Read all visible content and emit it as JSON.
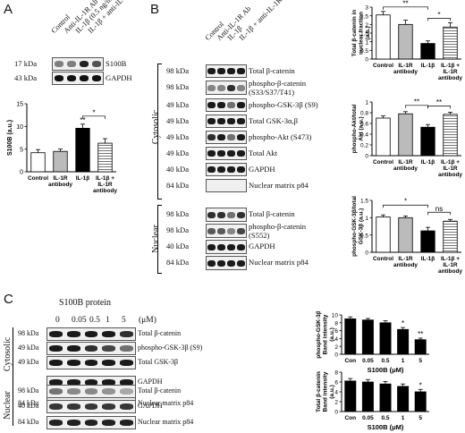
{
  "panels": {
    "A": {
      "letter": "A",
      "lanes": [
        "Control",
        "Anti-IL-1R Ab",
        "IL-1β (0.5 ng/ml)",
        "IL-1β + anti-IL-1R"
      ],
      "blots": [
        {
          "kda": "17 kDa",
          "name": "S100B"
        },
        {
          "kda": "43 kDa",
          "name": "GAPDH"
        }
      ]
    },
    "B": {
      "letter": "B",
      "lanes": [
        "Control",
        "Anti-IL-1R Ab",
        "IL-1β",
        "IL-1β + anti-IL-1R"
      ],
      "sections": {
        "cytosolic": "Cytosolic",
        "nuclear": "Nuclear"
      },
      "cyto_blots": [
        {
          "kda": "98 kDa",
          "name": "Total β-catenin"
        },
        {
          "kda": "98 kDa",
          "name": "phospho-β-catenin",
          "name2": "(S33/S37/T41)"
        },
        {
          "kda": "49 kDa",
          "name": "phospho-GSK-3β (S9)"
        },
        {
          "kda": "49 kDa",
          "name": "Total GSK-3α,β"
        },
        {
          "kda": "49 kDa",
          "name": "phospho-Akt (S473)"
        },
        {
          "kda": "49 kDa",
          "name": "Total Akt"
        },
        {
          "kda": "40 kDa",
          "name": "GAPDH"
        },
        {
          "kda": "84 kDa",
          "name": "Nuclear matrix p84"
        }
      ],
      "nuc_blots": [
        {
          "kda": "98 kDa",
          "name": "Total β-catenin"
        },
        {
          "kda": "98 kDa",
          "name": "phospho-β-catenin",
          "name2": "(S552)"
        },
        {
          "kda": "40 kDa",
          "name": "GAPDH"
        },
        {
          "kda": "84 kDa",
          "name": "Nuclear matrix p84"
        }
      ]
    },
    "C": {
      "letter": "C",
      "protein_label": "S100B protein",
      "doses": [
        "0",
        "0.05",
        "0.5",
        "1",
        "5"
      ],
      "unit": "(μM)",
      "sections": {
        "cytosolic": "Cytosolic",
        "nuclear": "Nuclear"
      },
      "cyto_blots": [
        {
          "kda": "98 kDa",
          "name": "Total β-catenin"
        },
        {
          "kda": "49 kDa",
          "name": "phospho-GSK-3β (S9)"
        },
        {
          "kda": "49 kDa",
          "name": "Total GSK-3β"
        },
        {
          "kda": "",
          "name": "GAPDH"
        },
        {
          "kda": "84 kDa",
          "name": "Nuclear matrix p84"
        }
      ],
      "nuc_blots": [
        {
          "kda": "98 kDa",
          "name": "Total β-catenin"
        },
        {
          "kda": "40 kDa",
          "name": "GAPDH"
        },
        {
          "kda": "84 kDa",
          "name": "Nuclear matrix p84"
        }
      ]
    }
  },
  "chart_data": [
    {
      "id": "A-S100B",
      "type": "bar",
      "categories": [
        "Control",
        "IL-1R antibody",
        "IL-1β",
        "IL-1β + IL-1R antibody"
      ],
      "values": [
        4.2,
        4.5,
        9.6,
        6.3
      ],
      "errors": [
        0.7,
        0.5,
        0.9,
        1.0
      ],
      "ylabel": "S100B (a.u.)",
      "ylim": [
        0,
        15
      ],
      "yticks": [
        0,
        5,
        10,
        15
      ],
      "significance": [
        {
          "from": 2,
          "to": 3,
          "label": "*"
        }
      ],
      "marks": [
        {
          "index": 2,
          "label": "**"
        }
      ],
      "fills": [
        "#ffffff",
        "#bbbbbb",
        "#000000",
        "#ffffff"
      ],
      "hatched": [
        false,
        false,
        false,
        true
      ]
    },
    {
      "id": "B-nuclear-catenin",
      "type": "bar",
      "categories": [
        "Control",
        "IL-1R antibody",
        "IL-1β",
        "IL-1β + IL-1R antibody"
      ],
      "values": [
        2.55,
        2.0,
        0.9,
        1.85
      ],
      "errors": [
        0.2,
        0.25,
        0.15,
        0.25
      ],
      "ylabel": "Total β-catenin in nuclear fraction (a.u.)",
      "ylim": [
        0,
        3.0
      ],
      "yticks": [
        0,
        0.5,
        1.0,
        1.5,
        2.0,
        2.5,
        3.0
      ],
      "significance": [
        {
          "from": 0,
          "to": 2,
          "label": "**"
        },
        {
          "from": 2,
          "to": 3,
          "label": "*"
        }
      ],
      "marks": [],
      "fills": [
        "#ffffff",
        "#bbbbbb",
        "#000000",
        "#ffffff"
      ],
      "hatched": [
        false,
        false,
        false,
        true
      ]
    },
    {
      "id": "B-pAkt",
      "type": "bar",
      "categories": [
        "Control",
        "IL-1R antibody",
        "IL-1β",
        "IL-1β + IL-1R antibody"
      ],
      "values": [
        0.7,
        0.78,
        0.53,
        0.77
      ],
      "errors": [
        0.04,
        0.04,
        0.05,
        0.04
      ],
      "ylabel": "phospho-Akt/total Akt (a.u.)",
      "ylim": [
        0,
        1.0
      ],
      "yticks": [
        0,
        0.2,
        0.4,
        0.6,
        0.8,
        1.0
      ],
      "significance": [
        {
          "from": 1,
          "to": 2,
          "label": "**"
        },
        {
          "from": 2,
          "to": 3,
          "label": "**"
        }
      ],
      "marks": [],
      "fills": [
        "#ffffff",
        "#bbbbbb",
        "#000000",
        "#ffffff"
      ],
      "hatched": [
        false,
        false,
        false,
        true
      ]
    },
    {
      "id": "B-pGSK",
      "type": "bar",
      "categories": [
        "Control",
        "IL-1R antibody",
        "IL-1β",
        "IL-1β + IL-1R antibody"
      ],
      "values": [
        1.02,
        1.0,
        0.62,
        0.9
      ],
      "errors": [
        0.06,
        0.05,
        0.1,
        0.05
      ],
      "ylabel": "phospho-GSK-3β/total GSK-3β (a.u.)",
      "ylim": [
        0,
        1.5
      ],
      "yticks": [
        0,
        0.5,
        1.0,
        1.5
      ],
      "significance": [
        {
          "from": 0,
          "to": 2,
          "label": "*"
        },
        {
          "from": 2,
          "to": 3,
          "label": "ns"
        }
      ],
      "marks": [],
      "fills": [
        "#ffffff",
        "#bbbbbb",
        "#000000",
        "#ffffff"
      ],
      "hatched": [
        false,
        false,
        false,
        true
      ]
    },
    {
      "id": "C-pGSK",
      "type": "bar",
      "categories": [
        "Con",
        "0.05",
        "0.5",
        "1",
        "5"
      ],
      "values": [
        9.0,
        8.7,
        8.0,
        6.3,
        3.7
      ],
      "errors": [
        0.5,
        0.4,
        0.5,
        0.5,
        0.4
      ],
      "ylabel": "phospho-GSK-3β Band intensity (a.u.)",
      "xlabel": "S100B (μM)",
      "ylim": [
        0,
        10
      ],
      "yticks": [
        0,
        2,
        4,
        6,
        8,
        10
      ],
      "significance": [],
      "marks": [
        {
          "index": 3,
          "label": "*"
        },
        {
          "index": 4,
          "label": "**"
        }
      ],
      "fills": [
        "#000000",
        "#000000",
        "#000000",
        "#000000",
        "#000000"
      ],
      "hatched": [
        false,
        false,
        false,
        false,
        false
      ]
    },
    {
      "id": "C-catenin",
      "type": "bar",
      "categories": [
        "Con",
        "0.05",
        "0.5",
        "1",
        "5"
      ],
      "values": [
        6.2,
        6.0,
        5.6,
        5.1,
        4.0
      ],
      "errors": [
        0.5,
        0.5,
        0.5,
        0.5,
        0.5
      ],
      "ylabel": "Total β-catenin Band intensity (a.u.)",
      "xlabel": "S100B (μM)",
      "ylim": [
        0,
        8
      ],
      "yticks": [
        0,
        2,
        4,
        6,
        8
      ],
      "significance": [],
      "marks": [
        {
          "index": 4,
          "label": "*"
        }
      ],
      "fills": [
        "#000000",
        "#000000",
        "#000000",
        "#000000",
        "#000000"
      ],
      "hatched": [
        false,
        false,
        false,
        false,
        false
      ]
    }
  ]
}
